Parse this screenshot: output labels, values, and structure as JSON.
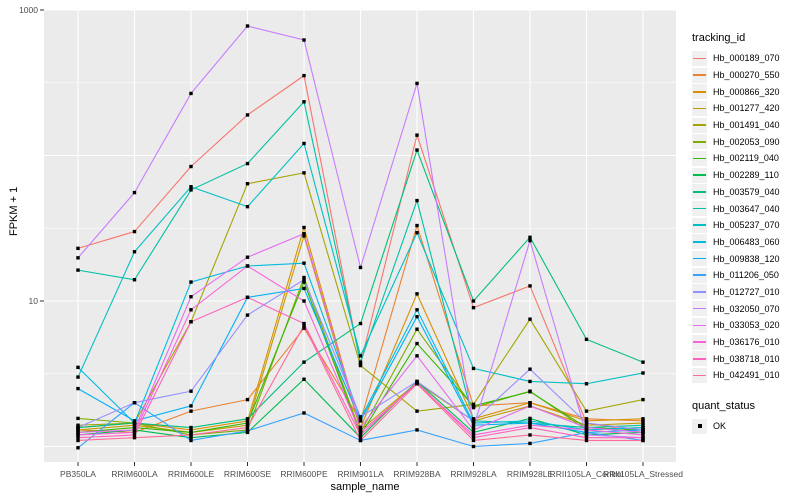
{
  "chart_data": {
    "type": "line",
    "title": "",
    "xlabel": "sample_name",
    "ylabel": "FPKM + 1",
    "y_scale": "log10",
    "ylim": [
      0.78,
      1035
    ],
    "y_major_ticks": [
      {
        "value": 10,
        "label": "10"
      },
      {
        "value": 1000,
        "label": "1000"
      }
    ],
    "y_major_gridlines": [
      1,
      10,
      100,
      1000
    ],
    "y_minor_gridlines": [
      3.162,
      31.62,
      316.2
    ],
    "grid": true,
    "panel_background": "#ebebeb",
    "gridline_color": "#ffffff",
    "marker": "black-square",
    "legend_position": "right",
    "legend_title": "tracking_id",
    "quant_legend": {
      "title": "quant_status",
      "items": [
        {
          "label": "OK",
          "symbol": "black-square"
        }
      ]
    },
    "x_categories": [
      "PB350LA",
      "RRIM600LA",
      "RRIM600LE",
      "RRIM600SE",
      "RRIM600PE",
      "RRIM901LA",
      "RRIM928BA",
      "RRIM928LA",
      "RRIM928LE",
      "RRII105LA_Control",
      "RRII105LA_Stressed"
    ],
    "series": [
      {
        "name": "Hb_000189_070",
        "color": "#F8766D",
        "values": [
          23,
          30,
          84,
          190,
          354,
          3.7,
          138,
          9.0,
          12.7,
          1.45,
          1.25
        ]
      },
      {
        "name": "Hb_000270_550",
        "color": "#EA8331",
        "values": [
          1.3,
          1.25,
          1.75,
          2.1,
          6.5,
          1.5,
          33,
          1.9,
          2.0,
          1.55,
          1.5
        ]
      },
      {
        "name": "Hb_000866_320",
        "color": "#D89000",
        "values": [
          1.35,
          1.45,
          1.3,
          1.5,
          32,
          1.35,
          11.2,
          1.55,
          2.0,
          1.5,
          1.55
        ]
      },
      {
        "name": "Hb_001277_420",
        "color": "#C09B00",
        "values": [
          1.3,
          1.4,
          1.25,
          1.4,
          28,
          1.3,
          2.75,
          1.5,
          1.9,
          1.4,
          1.45
        ]
      },
      {
        "name": "Hb_001491_040",
        "color": "#A3A500",
        "values": [
          1.4,
          1.45,
          7.2,
          64,
          76,
          3.6,
          1.75,
          1.95,
          7.5,
          1.75,
          2.1
        ]
      },
      {
        "name": "Hb_002053_090",
        "color": "#7CAE00",
        "values": [
          1.56,
          1.45,
          1.2,
          1.3,
          14.5,
          1.25,
          6.4,
          1.85,
          2.4,
          1.3,
          1.35
        ]
      },
      {
        "name": "Hb_002119_040",
        "color": "#39B600",
        "values": [
          1.25,
          1.35,
          1.25,
          1.45,
          13.5,
          1.2,
          5.1,
          1.9,
          2.38,
          1.35,
          1.3
        ]
      },
      {
        "name": "Hb_002289_110",
        "color": "#00BB4E",
        "values": [
          1.2,
          1.3,
          1.15,
          1.25,
          2.9,
          1.15,
          2.8,
          1.25,
          1.56,
          1.2,
          1.25
        ]
      },
      {
        "name": "Hb_003579_040",
        "color": "#00BF7D",
        "values": [
          1.35,
          1.45,
          1.35,
          1.55,
          3.8,
          7.0,
          109,
          10.0,
          27.4,
          5.45,
          3.8
        ]
      },
      {
        "name": "Hb_003647_040",
        "color": "#00C1A3",
        "values": [
          16.3,
          14.0,
          58,
          88,
          234,
          3.8,
          49,
          1.5,
          1.45,
          1.35,
          1.4
        ]
      },
      {
        "name": "Hb_005237_070",
        "color": "#00BFC4",
        "values": [
          3.0,
          21.8,
          61,
          44.5,
          121,
          4.2,
          29.5,
          3.44,
          2.8,
          2.7,
          3.2
        ]
      },
      {
        "name": "Hb_006483_060",
        "color": "#00BAE0",
        "values": [
          3.5,
          1.45,
          13.5,
          17.4,
          18.2,
          1.55,
          8.7,
          1.45,
          1.5,
          1.3,
          1.35
        ]
      },
      {
        "name": "Hb_009838_120",
        "color": "#00B0F6",
        "values": [
          2.5,
          1.5,
          1.9,
          10.6,
          12.2,
          1.5,
          7.8,
          1.4,
          1.45,
          1.25,
          1.3
        ]
      },
      {
        "name": "Hb_011206_050",
        "color": "#35A2FF",
        "values": [
          0.98,
          2.0,
          1.1,
          1.28,
          1.7,
          1.1,
          1.3,
          1.0,
          1.05,
          1.25,
          1.1
        ]
      },
      {
        "name": "Hb_012727_010",
        "color": "#9590FF",
        "values": [
          1.35,
          2.0,
          2.4,
          8.0,
          14.0,
          1.6,
          2.8,
          1.5,
          3.4,
          1.45,
          1.3
        ]
      },
      {
        "name": "Hb_032050_070",
        "color": "#C77CFF",
        "values": [
          19.8,
          55.6,
          267,
          776,
          622,
          17,
          313,
          1.35,
          26,
          1.2,
          1.15
        ]
      },
      {
        "name": "Hb_033053_020",
        "color": "#E76BF3",
        "values": [
          1.25,
          1.3,
          10.7,
          20,
          29,
          1.35,
          4.2,
          1.3,
          1.9,
          1.35,
          1.25
        ]
      },
      {
        "name": "Hb_036176_010",
        "color": "#FA62DB",
        "values": [
          1.2,
          1.25,
          8.7,
          17.4,
          10.0,
          1.25,
          2.7,
          1.2,
          1.4,
          1.3,
          1.2
        ]
      },
      {
        "name": "Hb_038718_010",
        "color": "#FF62BC",
        "values": [
          1.15,
          1.2,
          7.2,
          10.6,
          7.0,
          1.2,
          2.75,
          1.15,
          1.35,
          1.15,
          1.15
        ]
      },
      {
        "name": "Hb_042491_010",
        "color": "#FF6A98",
        "values": [
          1.1,
          1.15,
          1.2,
          1.35,
          6.8,
          1.1,
          2.7,
          1.1,
          1.2,
          1.1,
          1.1
        ]
      }
    ]
  }
}
